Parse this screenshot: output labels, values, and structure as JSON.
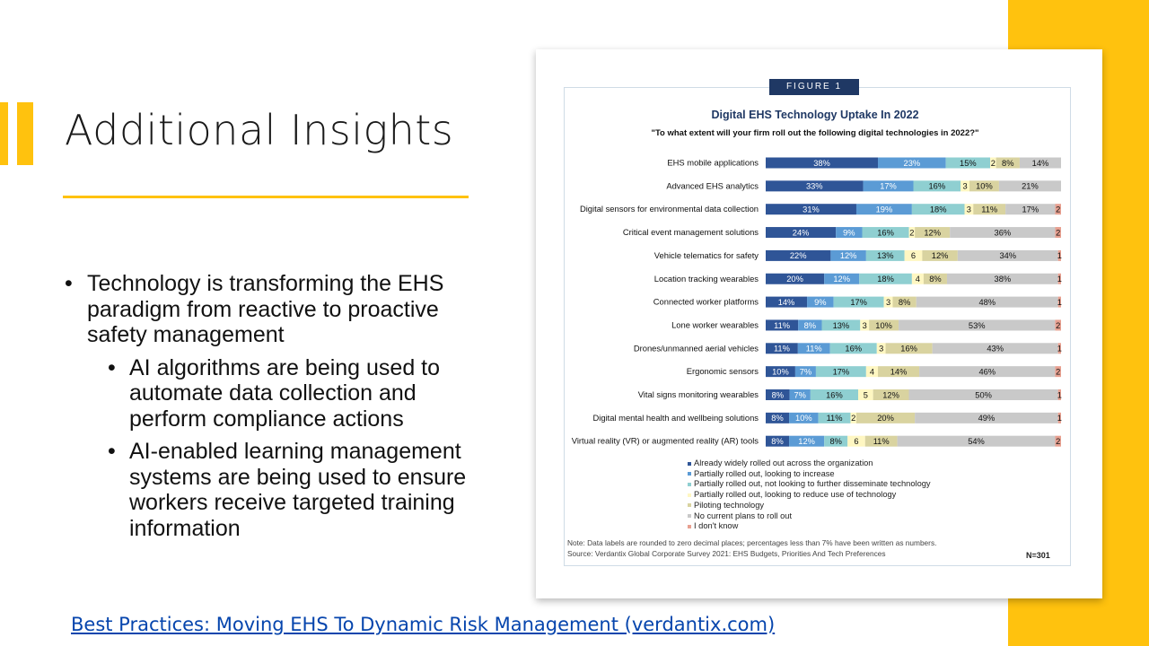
{
  "slide": {
    "title": "Additional Insights",
    "bullets": [
      "Technology is transforming the EHS paradigm from reactive to proactive safety management"
    ],
    "sub_bullets": [
      "AI algorithms are being used to automate data collection and perform compliance actions",
      "AI-enabled learning management systems are being used to ensure workers receive targeted training information"
    ],
    "bullet_marker": "•",
    "link_text": "Best Practices: Moving EHS To Dynamic Risk Management (verdantix.com)",
    "colors": {
      "accent": "#FFC20E",
      "link": "#0645AD"
    }
  },
  "figure": {
    "tag": "FIGURE 1",
    "note": "Note: Data labels are rounded to zero decimal places; percentages less than 7% have been written as numbers.",
    "source": "Source: Verdantix Global Corporate Survey 2021: EHS Budgets, Priorities And Tech Preferences",
    "n": "N=301"
  },
  "chart_data": {
    "type": "bar",
    "orientation": "horizontal",
    "stacked": true,
    "title": "Digital EHS Technology Uptake In 2022",
    "subtitle": "\"To what extent will your firm roll out the following digital technologies in 2022?\"",
    "categories": [
      "EHS mobile applications",
      "Advanced EHS analytics",
      "Digital sensors for environmental data collection",
      "Critical event management solutions",
      "Vehicle telematics for safety",
      "Location tracking wearables",
      "Connected worker platforms",
      "Lone worker wearables",
      "Drones/unmanned aerial vehicles",
      "Ergonomic sensors",
      "Vital signs monitoring wearables",
      "Digital mental health and wellbeing solutions",
      "Virtual reality (VR) or augmented reality (AR) tools"
    ],
    "series": [
      {
        "name": "Already widely rolled out across the organization",
        "color": "#2F5597",
        "values": [
          38,
          33,
          31,
          24,
          22,
          20,
          14,
          11,
          11,
          10,
          8,
          8,
          8
        ],
        "labels": [
          "38%",
          "33%",
          "31%",
          "24%",
          "22%",
          "20%",
          "14%",
          "11%",
          "11%",
          "10%",
          "8%",
          "8%",
          "8%"
        ]
      },
      {
        "name": "Partially rolled out, looking to increase",
        "color": "#5B9BD5",
        "values": [
          23,
          17,
          19,
          9,
          12,
          12,
          9,
          8,
          11,
          7,
          7,
          10,
          12
        ],
        "labels": [
          "23%",
          "17%",
          "19%",
          "9%",
          "12%",
          "12%",
          "9%",
          "8%",
          "11%",
          "7%",
          "7%",
          "10%",
          "12%"
        ]
      },
      {
        "name": "Partially rolled out, not looking to further disseminate technology",
        "color": "#8FCFD1",
        "values": [
          15,
          16,
          18,
          16,
          13,
          18,
          17,
          13,
          16,
          17,
          16,
          11,
          8
        ],
        "labels": [
          "15%",
          "16%",
          "18%",
          "16%",
          "13%",
          "18%",
          "17%",
          "13%",
          "16%",
          "17%",
          "16%",
          "11%",
          "8%"
        ]
      },
      {
        "name": "Partially rolled out, looking to reduce use of technology",
        "color": "#FFF7C2",
        "values": [
          2,
          3,
          3,
          2,
          6,
          4,
          3,
          3,
          3,
          4,
          5,
          2,
          6
        ],
        "labels": [
          "2",
          "3",
          "3",
          "2",
          "6",
          "4",
          "3",
          "3",
          "3",
          "4",
          "5",
          "2",
          "6"
        ]
      },
      {
        "name": "Piloting technology",
        "color": "#D9D3A0",
        "values": [
          8,
          10,
          11,
          12,
          12,
          8,
          8,
          10,
          16,
          14,
          12,
          20,
          11
        ],
        "labels": [
          "8%",
          "10%",
          "11%",
          "12%",
          "12%",
          "8%",
          "8%",
          "10%",
          "16%",
          "14%",
          "12%",
          "20%",
          "11%"
        ]
      },
      {
        "name": "No current plans to roll out",
        "color": "#C9C9C9",
        "values": [
          14,
          21,
          17,
          36,
          34,
          38,
          48,
          53,
          43,
          46,
          50,
          49,
          54
        ],
        "labels": [
          "14%",
          "21%",
          "17%",
          "36%",
          "34%",
          "38%",
          "48%",
          "53%",
          "43%",
          "46%",
          "50%",
          "49%",
          "54%"
        ]
      },
      {
        "name": "I don't know",
        "color": "#E8A090",
        "values": [
          0,
          0,
          2,
          2,
          1,
          1,
          1,
          2,
          1,
          2,
          1,
          1,
          2
        ],
        "labels": [
          "",
          "",
          "2",
          "2",
          "1",
          "1",
          "1",
          "2",
          "1",
          "2",
          "1",
          "1",
          "2"
        ]
      }
    ],
    "xlim": [
      0,
      100
    ],
    "grid": false,
    "legend_position": "bottom"
  }
}
